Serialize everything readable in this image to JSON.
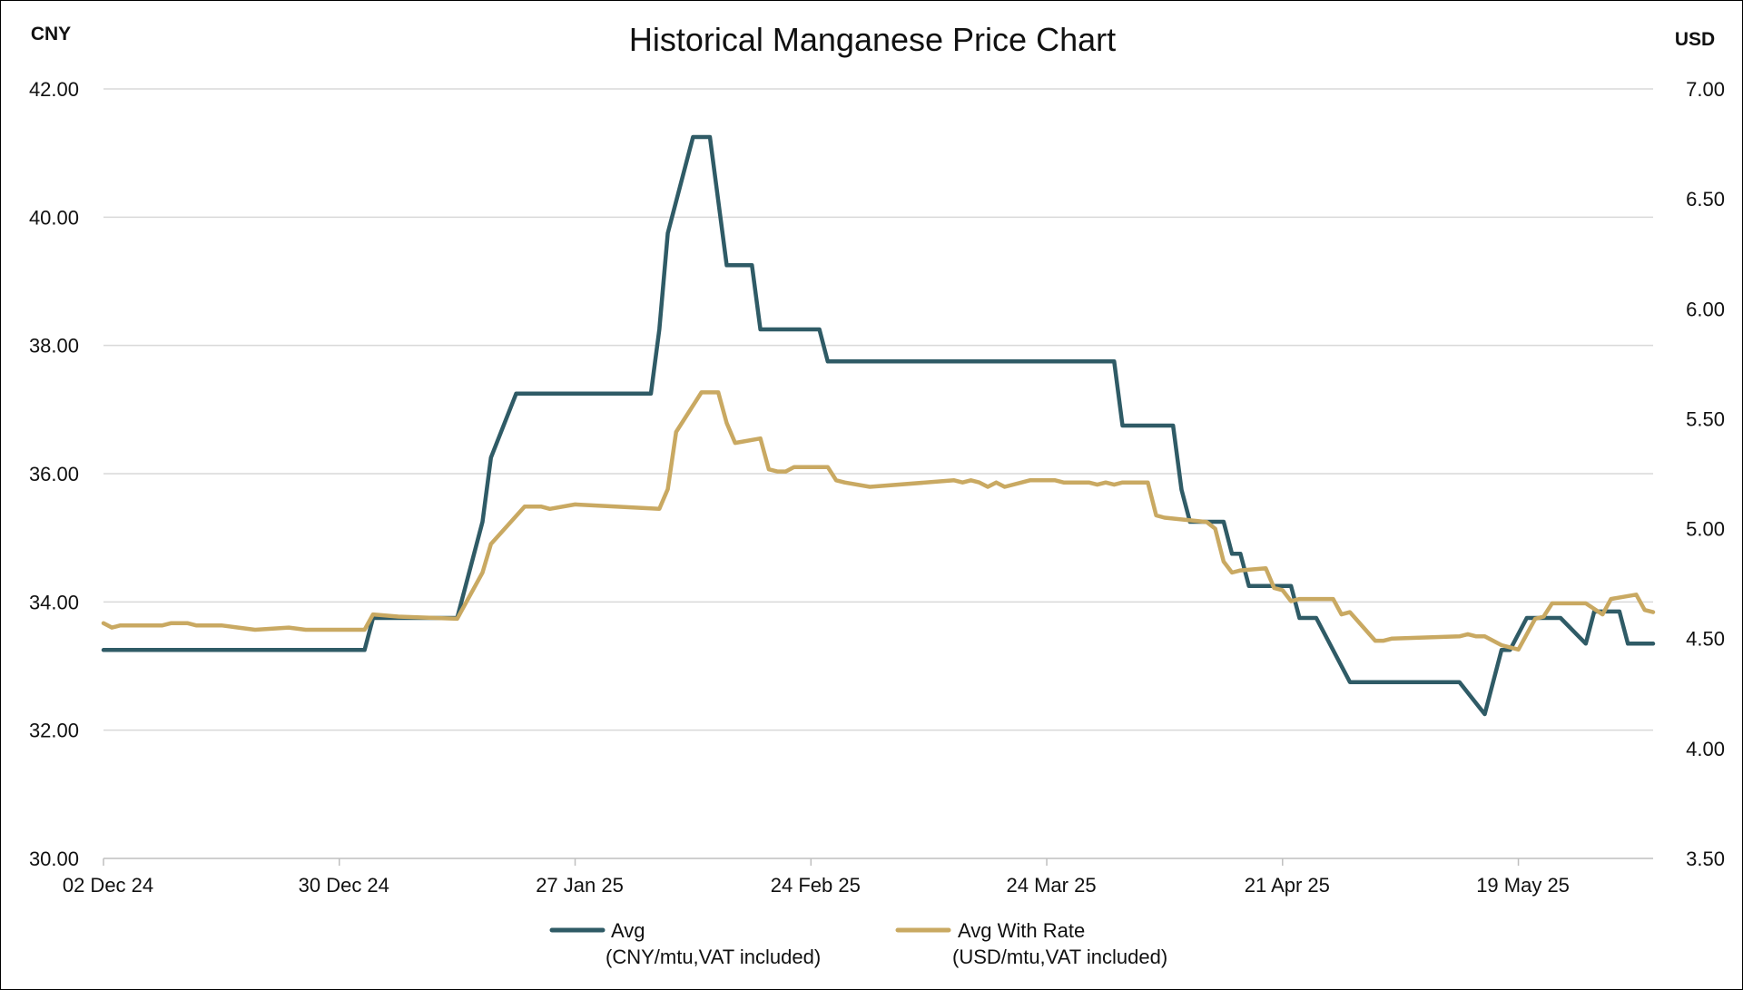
{
  "chart_data": {
    "type": "line",
    "title": "Historical Manganese Price Chart",
    "y_left_label": "CNY",
    "y_right_label": "USD",
    "ylim_left": [
      30,
      42
    ],
    "ylim_right": [
      3.5,
      7.0
    ],
    "yticks_left": [
      "30.00",
      "32.00",
      "34.00",
      "36.00",
      "38.00",
      "40.00",
      "42.00"
    ],
    "yticks_right": [
      "3.50",
      "4.00",
      "4.50",
      "5.00",
      "5.50",
      "6.00",
      "6.50",
      "7.00"
    ],
    "xlim": [
      "2024-12-02",
      "2025-06-04"
    ],
    "xticks": [
      {
        "date": "2024-12-02",
        "label": "02 Dec 24"
      },
      {
        "date": "2024-12-30",
        "label": "30 Dec 24"
      },
      {
        "date": "2025-01-27",
        "label": "27 Jan 25"
      },
      {
        "date": "2025-02-24",
        "label": "24 Feb 25"
      },
      {
        "date": "2025-03-24",
        "label": "24 Mar 25"
      },
      {
        "date": "2025-04-21",
        "label": "21 Apr 25"
      },
      {
        "date": "2025-05-19",
        "label": "19 May 25"
      }
    ],
    "grid": true,
    "legend_position": "bottom",
    "series": [
      {
        "name": "Avg",
        "unit": "(CNY/mtu,VAT included)",
        "axis": "left",
        "color": "#2f5b66",
        "points": [
          [
            "2024-12-02",
            33.25
          ],
          [
            "2025-01-02",
            33.25
          ],
          [
            "2025-01-03",
            33.75
          ],
          [
            "2025-01-13",
            33.75
          ],
          [
            "2025-01-16",
            35.25
          ],
          [
            "2025-01-17",
            36.25
          ],
          [
            "2025-01-20",
            37.25
          ],
          [
            "2025-02-05",
            37.25
          ],
          [
            "2025-02-06",
            38.25
          ],
          [
            "2025-02-07",
            39.75
          ],
          [
            "2025-02-10",
            41.25
          ],
          [
            "2025-02-12",
            41.25
          ],
          [
            "2025-02-14",
            39.25
          ],
          [
            "2025-02-17",
            39.25
          ],
          [
            "2025-02-18",
            38.25
          ],
          [
            "2025-02-25",
            38.25
          ],
          [
            "2025-02-26",
            37.75
          ],
          [
            "2025-04-01",
            37.75
          ],
          [
            "2025-04-02",
            36.75
          ],
          [
            "2025-04-08",
            36.75
          ],
          [
            "2025-04-09",
            35.75
          ],
          [
            "2025-04-10",
            35.25
          ],
          [
            "2025-04-14",
            35.25
          ],
          [
            "2025-04-15",
            34.75
          ],
          [
            "2025-04-16",
            34.75
          ],
          [
            "2025-04-17",
            34.25
          ],
          [
            "2025-04-22",
            34.25
          ],
          [
            "2025-04-23",
            33.75
          ],
          [
            "2025-04-25",
            33.75
          ],
          [
            "2025-04-29",
            32.75
          ],
          [
            "2025-05-12",
            32.75
          ],
          [
            "2025-05-15",
            32.25
          ],
          [
            "2025-05-17",
            33.25
          ],
          [
            "2025-05-18",
            33.25
          ],
          [
            "2025-05-20",
            33.75
          ],
          [
            "2025-05-24",
            33.75
          ],
          [
            "2025-05-27",
            33.35
          ],
          [
            "2025-05-28",
            33.85
          ],
          [
            "2025-05-31",
            33.85
          ],
          [
            "2025-06-01",
            33.35
          ],
          [
            "2025-06-04",
            33.35
          ]
        ]
      },
      {
        "name": "Avg With Rate",
        "unit": "(USD/mtu,VAT included)",
        "axis": "right",
        "color": "#c9a962",
        "points": [
          [
            "2024-12-02",
            4.57
          ],
          [
            "2024-12-03",
            4.55
          ],
          [
            "2024-12-04",
            4.56
          ],
          [
            "2024-12-09",
            4.56
          ],
          [
            "2024-12-10",
            4.57
          ],
          [
            "2024-12-12",
            4.57
          ],
          [
            "2024-12-13",
            4.56
          ],
          [
            "2024-12-16",
            4.56
          ],
          [
            "2024-12-18",
            4.55
          ],
          [
            "2024-12-20",
            4.54
          ],
          [
            "2024-12-24",
            4.55
          ],
          [
            "2024-12-26",
            4.54
          ],
          [
            "2025-01-02",
            4.54
          ],
          [
            "2025-01-03",
            4.61
          ],
          [
            "2025-01-06",
            4.6
          ],
          [
            "2025-01-13",
            4.59
          ],
          [
            "2025-01-16",
            4.8
          ],
          [
            "2025-01-17",
            4.93
          ],
          [
            "2025-01-21",
            5.1
          ],
          [
            "2025-01-23",
            5.1
          ],
          [
            "2025-01-24",
            5.09
          ],
          [
            "2025-01-27",
            5.11
          ],
          [
            "2025-02-06",
            5.09
          ],
          [
            "2025-02-07",
            5.18
          ],
          [
            "2025-02-08",
            5.44
          ],
          [
            "2025-02-11",
            5.62
          ],
          [
            "2025-02-13",
            5.62
          ],
          [
            "2025-02-14",
            5.48
          ],
          [
            "2025-02-15",
            5.39
          ],
          [
            "2025-02-18",
            5.41
          ],
          [
            "2025-02-19",
            5.27
          ],
          [
            "2025-02-20",
            5.26
          ],
          [
            "2025-02-21",
            5.26
          ],
          [
            "2025-02-22",
            5.28
          ],
          [
            "2025-02-26",
            5.28
          ],
          [
            "2025-02-27",
            5.22
          ],
          [
            "2025-02-28",
            5.21
          ],
          [
            "2025-03-03",
            5.19
          ],
          [
            "2025-03-13",
            5.22
          ],
          [
            "2025-03-14",
            5.21
          ],
          [
            "2025-03-15",
            5.22
          ],
          [
            "2025-03-16",
            5.21
          ],
          [
            "2025-03-17",
            5.19
          ],
          [
            "2025-03-18",
            5.21
          ],
          [
            "2025-03-19",
            5.19
          ],
          [
            "2025-03-22",
            5.22
          ],
          [
            "2025-03-25",
            5.22
          ],
          [
            "2025-03-26",
            5.21
          ],
          [
            "2025-03-29",
            5.21
          ],
          [
            "2025-03-30",
            5.2
          ],
          [
            "2025-03-31",
            5.21
          ],
          [
            "2025-04-01",
            5.2
          ],
          [
            "2025-04-02",
            5.21
          ],
          [
            "2025-04-05",
            5.21
          ],
          [
            "2025-04-06",
            5.06
          ],
          [
            "2025-04-07",
            5.05
          ],
          [
            "2025-04-12",
            5.03
          ],
          [
            "2025-04-13",
            5.0
          ],
          [
            "2025-04-14",
            4.85
          ],
          [
            "2025-04-15",
            4.8
          ],
          [
            "2025-04-16",
            4.81
          ],
          [
            "2025-04-19",
            4.82
          ],
          [
            "2025-04-20",
            4.73
          ],
          [
            "2025-04-21",
            4.72
          ],
          [
            "2025-04-22",
            4.67
          ],
          [
            "2025-04-23",
            4.68
          ],
          [
            "2025-04-27",
            4.68
          ],
          [
            "2025-04-28",
            4.61
          ],
          [
            "2025-04-29",
            4.62
          ],
          [
            "2025-05-02",
            4.49
          ],
          [
            "2025-05-03",
            4.49
          ],
          [
            "2025-05-04",
            4.5
          ],
          [
            "2025-05-12",
            4.51
          ],
          [
            "2025-05-13",
            4.52
          ],
          [
            "2025-05-14",
            4.51
          ],
          [
            "2025-05-15",
            4.51
          ],
          [
            "2025-05-17",
            4.47
          ],
          [
            "2025-05-19",
            4.45
          ],
          [
            "2025-05-21",
            4.59
          ],
          [
            "2025-05-22",
            4.6
          ],
          [
            "2025-05-23",
            4.66
          ],
          [
            "2025-05-27",
            4.66
          ],
          [
            "2025-05-29",
            4.61
          ],
          [
            "2025-05-30",
            4.68
          ],
          [
            "2025-06-02",
            4.7
          ],
          [
            "2025-06-03",
            4.63
          ],
          [
            "2025-06-04",
            4.62
          ]
        ]
      }
    ]
  }
}
